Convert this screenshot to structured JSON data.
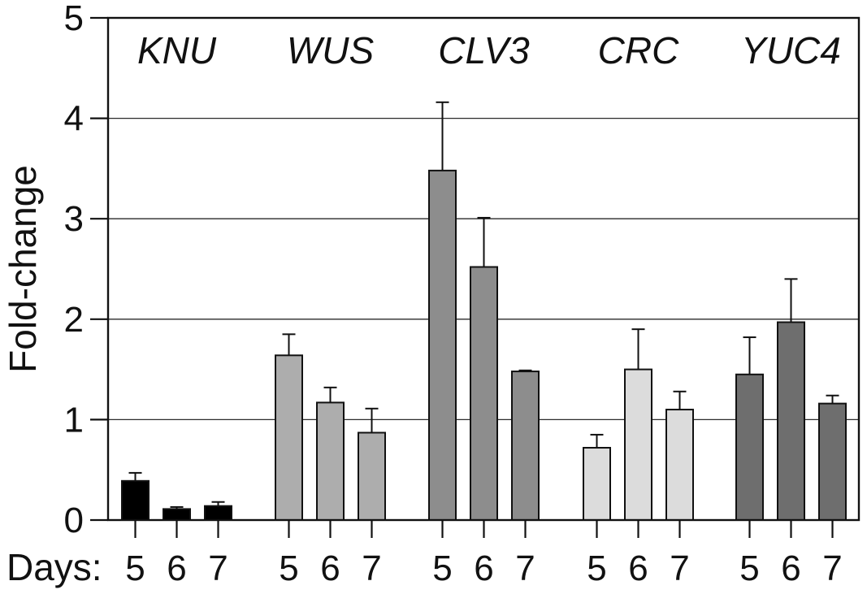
{
  "chart_data": {
    "type": "bar",
    "title": "",
    "xlabel": "Days:",
    "ylabel": "Fold-change",
    "ylim": [
      0,
      5
    ],
    "yticks": [
      "0",
      "1",
      "2",
      "3",
      "4",
      "5"
    ],
    "grid": true,
    "legend": "none",
    "groups": [
      {
        "name": "KNU",
        "color": "#000000",
        "days": [
          "5",
          "6",
          "7"
        ],
        "values": [
          0.39,
          0.11,
          0.14
        ],
        "errors": [
          0.08,
          0.02,
          0.04
        ]
      },
      {
        "name": "WUS",
        "color": "#adadad",
        "days": [
          "5",
          "6",
          "7"
        ],
        "values": [
          1.64,
          1.17,
          0.87
        ],
        "errors": [
          0.21,
          0.15,
          0.24
        ]
      },
      {
        "name": "CLV3",
        "color": "#8d8d8d",
        "days": [
          "5",
          "6",
          "7"
        ],
        "values": [
          3.48,
          2.52,
          1.48
        ],
        "errors": [
          0.68,
          0.49,
          0.01
        ]
      },
      {
        "name": "CRC",
        "color": "#dcdcdc",
        "days": [
          "5",
          "6",
          "7"
        ],
        "values": [
          0.72,
          1.5,
          1.1
        ],
        "errors": [
          0.13,
          0.4,
          0.18
        ]
      },
      {
        "name": "YUC4",
        "color": "#6e6e6e",
        "days": [
          "5",
          "6",
          "7"
        ],
        "values": [
          1.45,
          1.97,
          1.16
        ],
        "errors": [
          0.37,
          0.43,
          0.08
        ]
      }
    ]
  }
}
